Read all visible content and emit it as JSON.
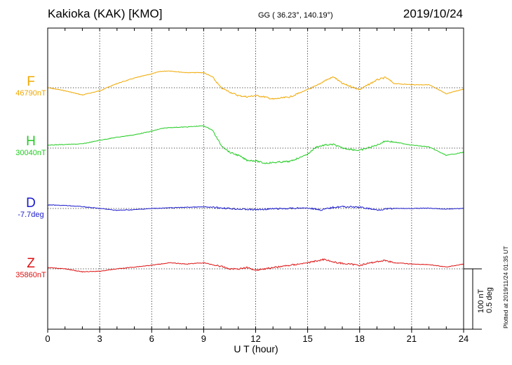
{
  "header": {
    "title": "Kakioka (KAK)  [KMO]",
    "coords": "GG ( 36.23°, 140.19°)",
    "date": "2019/10/24",
    "plotted_at": "Plotted at 2019/11/24 01:35 UT"
  },
  "scale": {
    "line1": "100 nT",
    "line2": "0.5 deg"
  },
  "chart_data": {
    "type": "line",
    "xlabel": "U T (hour)",
    "xlim": [
      0,
      24
    ],
    "xticks": [
      0,
      3,
      6,
      9,
      12,
      15,
      18,
      21,
      24
    ],
    "grid": true,
    "units_per_scale_bar": {
      "nT": 100,
      "deg": 0.5
    },
    "series": [
      {
        "name": "F",
        "baseline_label": "46790nT",
        "baseline": 46790,
        "unit": "nT",
        "color": "#f0a800",
        "x": [
          0,
          1,
          2,
          3,
          4,
          5,
          6,
          6.5,
          7,
          8,
          9,
          9.5,
          10,
          10.5,
          11,
          11.5,
          12,
          12.5,
          13,
          14,
          15,
          15.5,
          16,
          16.5,
          17,
          18,
          19,
          19.5,
          20,
          21,
          22,
          23,
          24
        ],
        "values": [
          46790,
          46785,
          46778,
          46785,
          46797,
          46806,
          46813,
          46817,
          46818,
          46815,
          46815,
          46808,
          46790,
          46783,
          46777,
          46775,
          46777,
          46775,
          46771,
          46775,
          46787,
          46793,
          46802,
          46808,
          46797,
          46787,
          46803,
          46807,
          46797,
          46795,
          46795,
          46780,
          46788
        ]
      },
      {
        "name": "H",
        "baseline_label": "30040nT",
        "baseline": 30040,
        "unit": "nT",
        "color": "#22cc22",
        "x": [
          0,
          1,
          2,
          3,
          4,
          5,
          6,
          6.5,
          7,
          8,
          9,
          9.5,
          10,
          10.5,
          11,
          11.5,
          12,
          12.5,
          13,
          14,
          15,
          15.5,
          16,
          16.5,
          17,
          18,
          19,
          19.5,
          20,
          21,
          22,
          23,
          24
        ],
        "values": [
          30045,
          30046,
          30047,
          30053,
          30058,
          30062,
          30068,
          30072,
          30074,
          30075,
          30077,
          30070,
          30045,
          30033,
          30028,
          30020,
          30019,
          30015,
          30016,
          30018,
          30030,
          30042,
          30045,
          30046,
          30040,
          30036,
          30045,
          30052,
          30050,
          30045,
          30042,
          30028,
          30033
        ]
      },
      {
        "name": "D",
        "baseline_label": "-7.7deg",
        "baseline": -7.7,
        "unit": "deg",
        "color": "#1a1acc",
        "x": [
          0,
          1,
          2,
          3,
          4,
          5,
          6,
          7,
          8,
          9,
          10,
          11,
          12,
          13,
          14,
          15,
          15.8,
          16.5,
          17,
          18,
          18.5,
          19,
          19.5,
          20,
          21,
          22,
          23,
          24
        ],
        "values": [
          -7.671,
          -7.675,
          -7.685,
          -7.7,
          -7.715,
          -7.71,
          -7.7,
          -7.695,
          -7.69,
          -7.687,
          -7.695,
          -7.705,
          -7.71,
          -7.703,
          -7.7,
          -7.695,
          -7.712,
          -7.69,
          -7.685,
          -7.69,
          -7.7,
          -7.712,
          -7.705,
          -7.7,
          -7.7,
          -7.698,
          -7.705,
          -7.7
        ]
      },
      {
        "name": "Z",
        "baseline_label": "35860nT",
        "baseline": 35860,
        "unit": "nT",
        "color": "#dd1111",
        "x": [
          0,
          1,
          2,
          3,
          4,
          5,
          6,
          7,
          8,
          9,
          10,
          10.5,
          11,
          11.5,
          12,
          13,
          14,
          15,
          16,
          16.5,
          17,
          18,
          19,
          19.5,
          20,
          21,
          22,
          23,
          24
        ],
        "values": [
          35862,
          35860,
          35855,
          35856,
          35860,
          35863,
          35866,
          35870,
          35868,
          35870,
          35864,
          35860,
          35860,
          35862,
          35858,
          35862,
          35866,
          35870,
          35876,
          35871,
          35869,
          35866,
          35872,
          35874,
          35870,
          35868,
          35867,
          35863,
          35868
        ]
      }
    ]
  }
}
